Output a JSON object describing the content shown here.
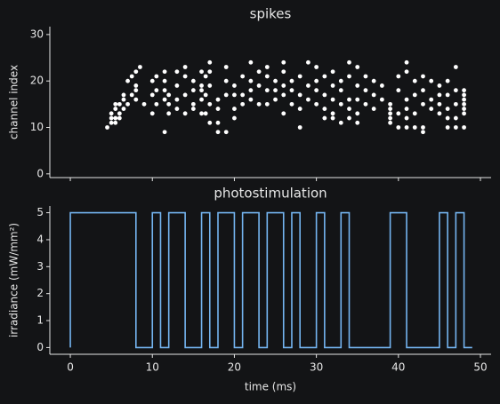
{
  "chart_data": [
    {
      "type": "scatter",
      "title": "spikes",
      "ylabel": "channel index",
      "color": "#ffffff",
      "x": [
        4.5,
        5,
        5,
        5,
        5.5,
        5.5,
        5.5,
        5.5,
        6,
        6,
        6,
        6.5,
        6.5,
        6.5,
        7,
        7,
        7.5,
        7.5,
        8,
        8,
        8,
        8,
        8.5,
        9,
        10,
        10,
        10,
        10.5,
        10.5,
        10.5,
        11.5,
        11.5,
        11.5,
        11.5,
        11.5,
        12,
        12,
        12,
        13,
        13,
        13,
        13,
        14,
        14,
        14,
        14,
        15,
        15,
        15,
        15,
        16,
        16,
        16,
        16,
        16,
        16.5,
        16.5,
        16.5,
        17,
        17,
        17,
        17,
        17,
        18,
        18,
        18,
        18,
        19,
        19,
        19,
        19,
        20,
        20,
        20,
        20,
        21,
        21,
        21,
        22,
        22,
        22,
        22,
        23,
        23,
        23,
        24,
        24,
        24,
        24,
        25,
        25,
        25,
        26,
        26,
        26,
        26,
        26,
        27,
        27,
        27,
        28,
        28,
        28,
        28,
        29,
        29,
        29,
        30,
        30,
        30,
        30,
        31,
        31,
        31,
        31,
        32,
        32,
        32,
        32,
        32,
        33,
        33,
        33,
        33,
        34,
        34,
        34,
        34,
        34,
        35,
        35,
        35,
        35,
        35,
        36,
        36,
        36,
        37,
        37,
        37,
        38,
        38,
        39,
        39,
        39,
        39,
        39,
        40,
        40,
        40,
        40,
        41,
        41,
        41,
        41,
        41,
        41,
        42,
        42,
        42,
        42,
        43,
        43,
        43,
        43,
        43,
        44,
        44,
        44,
        45,
        45,
        45,
        45,
        46,
        46,
        46,
        46,
        46,
        47,
        47,
        47,
        47,
        47,
        48,
        48,
        48,
        48,
        48,
        48,
        48
      ],
      "y": [
        10,
        11,
        12,
        13,
        11,
        12,
        14,
        15,
        12,
        13,
        15,
        14,
        16,
        17,
        15,
        20,
        17,
        21,
        16,
        18,
        19,
        22,
        23,
        15,
        13,
        17,
        20,
        15,
        18,
        21,
        9,
        16,
        18,
        20,
        22,
        13,
        15,
        17,
        14,
        16,
        19,
        22,
        13,
        17,
        21,
        23,
        14,
        15,
        18,
        20,
        13,
        16,
        18,
        19,
        22,
        13,
        17,
        21,
        11,
        15,
        19,
        22,
        24,
        9,
        11,
        14,
        16,
        9,
        17,
        20,
        23,
        12,
        14,
        17,
        19,
        15,
        17,
        21,
        16,
        18,
        20,
        24,
        15,
        19,
        22,
        15,
        18,
        21,
        23,
        16,
        18,
        20,
        13,
        17,
        19,
        22,
        24,
        15,
        18,
        20,
        10,
        14,
        17,
        21,
        16,
        19,
        24,
        15,
        18,
        20,
        23,
        12,
        14,
        17,
        21,
        12,
        13,
        16,
        19,
        22,
        11,
        15,
        18,
        20,
        12,
        14,
        16,
        21,
        24,
        11,
        13,
        16,
        19,
        23,
        15,
        18,
        21,
        14,
        17,
        20,
        16,
        19,
        11,
        12,
        13,
        14,
        15,
        10,
        13,
        18,
        21,
        10,
        12,
        14,
        16,
        22,
        24,
        10,
        13,
        17,
        20,
        9,
        10,
        15,
        18,
        21,
        14,
        16,
        20,
        13,
        15,
        17,
        19,
        10,
        12,
        14,
        17,
        20,
        10,
        12,
        15,
        18,
        23,
        10,
        13,
        14,
        15,
        16,
        17,
        18
      ],
      "xlim": [
        -2.5,
        51.3
      ],
      "ylim": [
        -0.8,
        31.7
      ],
      "yticks": [
        0,
        10,
        20,
        30
      ]
    },
    {
      "type": "line",
      "title": "photostimulation",
      "xlabel": "time (ms)",
      "ylabel": "irradiance (mW/mm²)",
      "color": "#74b4f0",
      "x": [
        0,
        0,
        8,
        8,
        10,
        10,
        11,
        11,
        12,
        12,
        14,
        14,
        16,
        16,
        17,
        17,
        18,
        18,
        20,
        20,
        21,
        21,
        23,
        23,
        24,
        24,
        26,
        26,
        27,
        27,
        28,
        28,
        30,
        30,
        31,
        31,
        33,
        33,
        34,
        34,
        39,
        39,
        41,
        41,
        45,
        45,
        46,
        46,
        47,
        47,
        48,
        48,
        49
      ],
      "y": [
        0,
        5,
        5,
        0,
        0,
        5,
        5,
        0,
        0,
        5,
        5,
        0,
        0,
        5,
        5,
        0,
        0,
        5,
        5,
        0,
        0,
        5,
        5,
        0,
        0,
        5,
        5,
        0,
        0,
        5,
        5,
        0,
        0,
        5,
        5,
        0,
        0,
        5,
        5,
        0,
        0,
        5,
        5,
        0,
        0,
        5,
        5,
        0,
        0,
        5,
        5,
        0,
        0
      ],
      "xlim": [
        -2.5,
        51.3
      ],
      "ylim": [
        -0.25,
        5.25
      ],
      "xticks": [
        0,
        10,
        20,
        30,
        40,
        50
      ],
      "yticks": [
        0,
        1,
        2,
        3,
        4,
        5
      ]
    }
  ]
}
